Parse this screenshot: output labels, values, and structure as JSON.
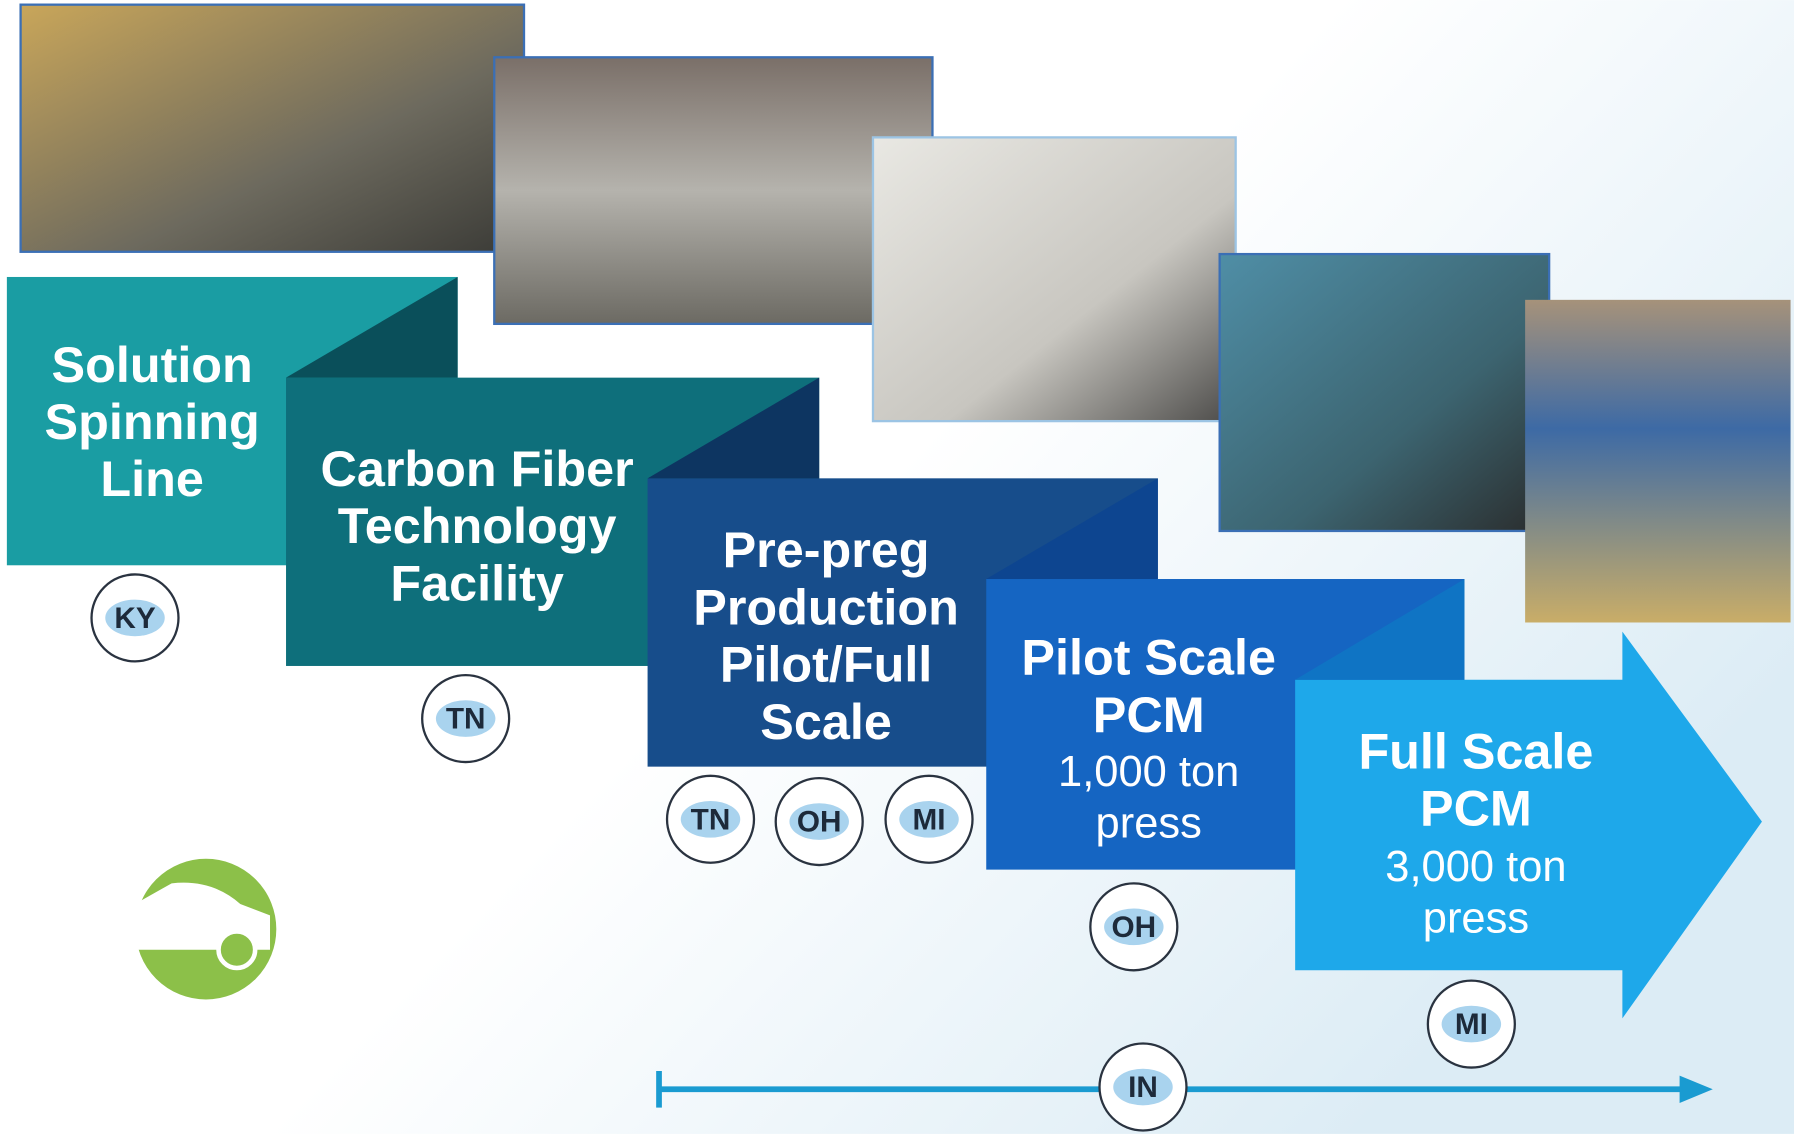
{
  "steps": [
    {
      "title": [
        "Solution",
        "Spinning",
        "Line"
      ],
      "states": [
        "KY"
      ]
    },
    {
      "title": [
        "Carbon Fiber",
        "Technology",
        "Facility"
      ],
      "states": [
        "TN"
      ]
    },
    {
      "title": [
        "Pre-preg",
        "Production",
        "Pilot/Full",
        "Scale"
      ],
      "states": [
        "TN",
        "OH",
        "MI"
      ]
    },
    {
      "title": [
        "Pilot Scale",
        "PCM"
      ],
      "detail": [
        "1,000 ton",
        "press"
      ],
      "states": [
        "OH"
      ]
    },
    {
      "title": [
        "Full Scale",
        "PCM"
      ],
      "detail": [
        "3,000 ton",
        "press"
      ],
      "states": [
        "MI"
      ]
    }
  ],
  "timeline": {
    "states": [
      "IN"
    ]
  }
}
